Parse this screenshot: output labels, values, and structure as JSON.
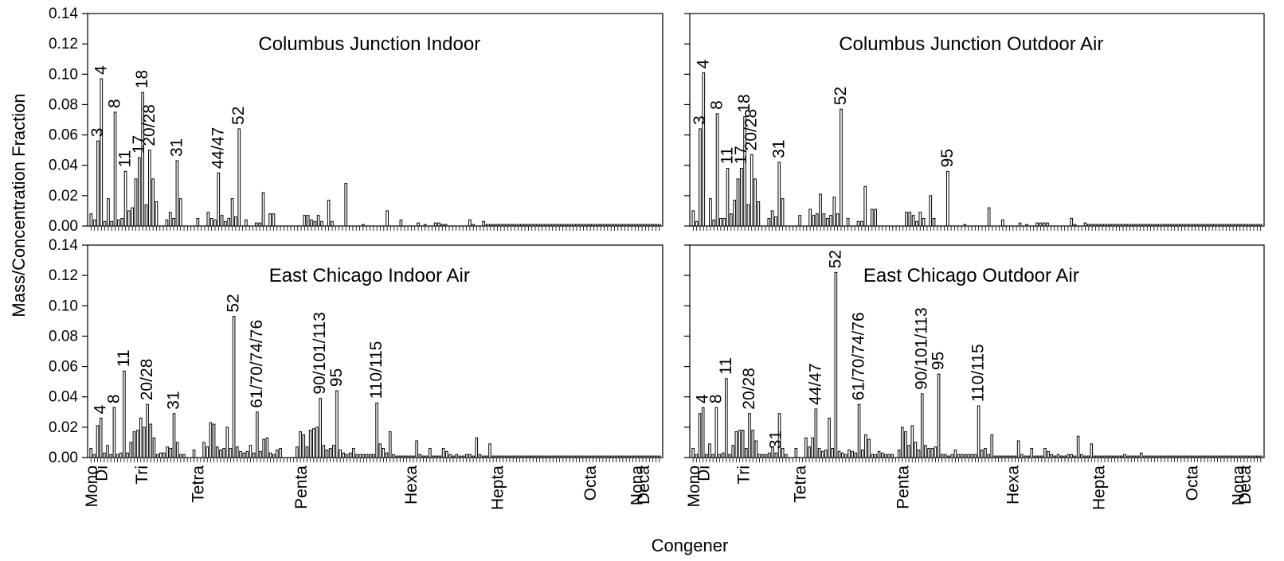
{
  "figure": {
    "ylabel": "Mass/Concentration Fraction",
    "xlabel": "Congener",
    "yticks": [
      "0.00",
      "0.02",
      "0.04",
      "0.06",
      "0.08",
      "0.10",
      "0.12",
      "0.14"
    ],
    "homolog_groups": [
      "Mono",
      "Di",
      "Tri",
      "Tetra",
      "Penta",
      "Hexa",
      "Hepta",
      "Octa",
      "Nona",
      "Deca"
    ]
  },
  "chart_data": [
    {
      "type": "bar",
      "title": "Columbus Junction Indoor",
      "ylim": [
        0,
        0.14
      ],
      "bars": [
        0.008,
        0.004,
        0.056,
        0.097,
        0.003,
        0.018,
        0.003,
        0.075,
        0.004,
        0.005,
        0.036,
        0.01,
        0.012,
        0.031,
        0.045,
        0.088,
        0.014,
        0.05,
        0.031,
        0.016,
        0,
        0,
        0.004,
        0.009,
        0.005,
        0.043,
        0.018,
        0,
        0,
        0,
        0,
        0.005,
        0,
        0,
        0.009,
        0.005,
        0.004,
        0.035,
        0.007,
        0.003,
        0.005,
        0.018,
        0.006,
        0.064,
        0,
        0.004,
        0,
        0,
        0.002,
        0.002,
        0.022,
        0,
        0.008,
        0.008,
        0,
        0,
        0,
        0,
        0,
        0,
        0,
        0,
        0.007,
        0.007,
        0.004,
        0.003,
        0.007,
        0.003,
        0,
        0.017,
        0.003,
        0,
        0,
        0,
        0.028,
        0,
        0,
        0,
        0,
        0.001,
        0,
        0,
        0,
        0,
        0,
        0,
        0.01,
        0,
        0,
        0,
        0.004,
        0,
        0,
        0,
        0,
        0.002,
        0,
        0.001,
        0,
        0,
        0.002,
        0.002,
        0.001,
        0.001,
        0,
        0,
        0,
        0,
        0,
        0,
        0.004,
        0.001,
        0,
        0,
        0.003,
        0.001,
        0.001,
        0.001,
        0.001,
        0.001,
        0.001,
        0.001,
        0.001,
        0.001,
        0.001,
        0.001,
        0.001,
        0.001,
        0.001,
        0.001,
        0.001,
        0.001,
        0.001,
        0.001,
        0.001,
        0.001,
        0.001,
        0.001,
        0.001,
        0.001,
        0.001,
        0.001,
        0.001,
        0.001,
        0.001,
        0.001,
        0.001,
        0.001,
        0.001,
        0.001,
        0.001,
        0.001,
        0.001,
        0.001,
        0.001,
        0.001,
        0.001,
        0.001,
        0.001,
        0.001,
        0.001,
        0.001,
        0.001,
        0.001,
        0.001,
        0.001
      ],
      "labels": [
        {
          "text": "3",
          "bar": 2
        },
        {
          "text": "4",
          "bar": 3
        },
        {
          "text": "8",
          "bar": 7
        },
        {
          "text": "11",
          "bar": 10
        },
        {
          "text": "17",
          "bar": 14
        },
        {
          "text": "18",
          "bar": 15
        },
        {
          "text": "20/28",
          "bar": 17
        },
        {
          "text": "31",
          "bar": 25
        },
        {
          "text": "44/47",
          "bar": 37
        },
        {
          "text": "52",
          "bar": 43
        }
      ],
      "show_x_group_labels": false
    },
    {
      "type": "bar",
      "title": "Columbus Junction Outdoor Air",
      "ylim": [
        0,
        0.14
      ],
      "bars": [
        0.01,
        0.003,
        0.064,
        0.101,
        0,
        0.018,
        0.004,
        0.074,
        0.005,
        0.005,
        0.038,
        0.008,
        0.017,
        0.031,
        0.038,
        0.072,
        0.014,
        0.047,
        0.031,
        0.016,
        0,
        0,
        0.005,
        0.01,
        0.006,
        0.042,
        0.018,
        0,
        0,
        0,
        0,
        0.007,
        0,
        0,
        0.011,
        0.007,
        0.008,
        0.021,
        0.008,
        0.005,
        0.007,
        0.019,
        0.008,
        0.077,
        0,
        0.005,
        0,
        0,
        0.003,
        0.003,
        0.026,
        0,
        0.011,
        0.011,
        0,
        0,
        0,
        0,
        0,
        0,
        0,
        0,
        0.009,
        0.009,
        0.007,
        0.003,
        0.009,
        0.005,
        0,
        0.02,
        0.005,
        0,
        0,
        0,
        0.036,
        0,
        0,
        0,
        0,
        0.001,
        0,
        0,
        0,
        0,
        0,
        0,
        0.012,
        0,
        0,
        0,
        0.004,
        0,
        0,
        0,
        0,
        0.002,
        0,
        0.001,
        0,
        0,
        0.002,
        0.002,
        0.002,
        0.002,
        0,
        0,
        0,
        0,
        0,
        0,
        0.005,
        0.001,
        0,
        0,
        0.002,
        0.001,
        0.001,
        0.001,
        0.001,
        0.001,
        0.001,
        0.001,
        0.001,
        0.001,
        0.001,
        0.001,
        0.001,
        0.001,
        0.001,
        0.001,
        0.001,
        0.001,
        0.001,
        0.001,
        0.001,
        0.001,
        0.001,
        0.001,
        0.001,
        0.001,
        0.001,
        0.001,
        0.001,
        0.001,
        0.001,
        0.001,
        0.001,
        0.001,
        0.001,
        0.001,
        0.001,
        0.001,
        0.001,
        0.001,
        0.001,
        0.001,
        0.001,
        0.001,
        0.001,
        0.001,
        0.001,
        0.001,
        0.001,
        0.001,
        0.001,
        0.001
      ],
      "labels": [
        {
          "text": "3",
          "bar": 2
        },
        {
          "text": "4",
          "bar": 3
        },
        {
          "text": "8",
          "bar": 7
        },
        {
          "text": "11",
          "bar": 10
        },
        {
          "text": "17",
          "bar": 14
        },
        {
          "text": "18",
          "bar": 15
        },
        {
          "text": "20/28",
          "bar": 17
        },
        {
          "text": "31",
          "bar": 25
        },
        {
          "text": "52",
          "bar": 43
        },
        {
          "text": "95",
          "bar": 74
        }
      ],
      "show_x_group_labels": false
    },
    {
      "type": "bar",
      "title": "East Chicago Indoor Air",
      "ylim": [
        0,
        0.14
      ],
      "bars": [
        0.006,
        0.002,
        0.021,
        0.026,
        0.003,
        0.008,
        0.002,
        0.033,
        0.002,
        0.003,
        0.057,
        0.003,
        0.01,
        0.017,
        0.018,
        0.026,
        0.02,
        0.035,
        0.022,
        0.013,
        0.002,
        0.003,
        0.003,
        0.007,
        0.006,
        0.029,
        0.01,
        0.002,
        0.002,
        0,
        0,
        0.005,
        0,
        0,
        0.01,
        0.007,
        0.023,
        0.022,
        0.007,
        0.005,
        0.006,
        0.02,
        0.006,
        0.093,
        0.007,
        0.004,
        0.003,
        0.004,
        0.008,
        0.003,
        0.03,
        0.004,
        0.012,
        0.013,
        0.003,
        0.002,
        0.005,
        0.006,
        0,
        0,
        0,
        0,
        0.007,
        0.017,
        0.015,
        0.007,
        0.018,
        0.019,
        0.02,
        0.039,
        0.008,
        0.005,
        0.006,
        0.008,
        0.044,
        0.005,
        0.003,
        0.002,
        0.003,
        0.006,
        0.002,
        0.002,
        0.002,
        0.002,
        0.002,
        0.002,
        0.036,
        0.009,
        0.006,
        0.003,
        0.017,
        0.002,
        0.001,
        0.001,
        0.001,
        0.001,
        0.001,
        0.001,
        0.011,
        0.002,
        0.001,
        0.001,
        0.006,
        0.001,
        0.001,
        0.001,
        0.006,
        0.004,
        0.002,
        0.001,
        0.002,
        0.001,
        0.001,
        0.002,
        0.002,
        0.001,
        0.013,
        0.002,
        0.001,
        0.001,
        0.009,
        0.001,
        0.001,
        0.001,
        0.001,
        0.001,
        0.001,
        0.001,
        0.001,
        0.001,
        0.001,
        0.001,
        0.001,
        0.001,
        0.001,
        0.001,
        0.001,
        0.001,
        0.001,
        0.001,
        0.001,
        0.001,
        0.001,
        0.001,
        0.001,
        0.001,
        0.001,
        0.001,
        0.001,
        0.001,
        0.001,
        0.001,
        0.001,
        0.001,
        0.001,
        0.001,
        0.001,
        0.001,
        0.001,
        0.001,
        0.001,
        0.001,
        0.001,
        0.001,
        0.001,
        0.001,
        0.001,
        0.001,
        0.001,
        0.001,
        0.001,
        0.001
      ],
      "labels": [
        {
          "text": "4",
          "bar": 3
        },
        {
          "text": "8",
          "bar": 7
        },
        {
          "text": "11",
          "bar": 10
        },
        {
          "text": "20/28",
          "bar": 17
        },
        {
          "text": "31",
          "bar": 25
        },
        {
          "text": "52",
          "bar": 43
        },
        {
          "text": "61/70/74/76",
          "bar": 50
        },
        {
          "text": "90/101/113",
          "bar": 69
        },
        {
          "text": "95",
          "bar": 74
        },
        {
          "text": "110/115",
          "bar": 86
        }
      ],
      "show_x_group_labels": true
    },
    {
      "type": "bar",
      "title": "East Chicago Outdoor Air",
      "ylim": [
        0,
        0.14
      ],
      "bars": [
        0.006,
        0.002,
        0.029,
        0.033,
        0.002,
        0.009,
        0.002,
        0.033,
        0.002,
        0.003,
        0.052,
        0.002,
        0.008,
        0.017,
        0.018,
        0.018,
        0.006,
        0.029,
        0.018,
        0.011,
        0.002,
        0.002,
        0.002,
        0.003,
        0.007,
        0.003,
        0.029,
        0.006,
        0.002,
        0,
        0,
        0.006,
        0,
        0,
        0.013,
        0.007,
        0.013,
        0.032,
        0.006,
        0.004,
        0.005,
        0.026,
        0.006,
        0.122,
        0.004,
        0.003,
        0.002,
        0.005,
        0.004,
        0.003,
        0.035,
        0.005,
        0.015,
        0.012,
        0.002,
        0.002,
        0.004,
        0.003,
        0.002,
        0.002,
        0.002,
        0,
        0.005,
        0.02,
        0.017,
        0.008,
        0.021,
        0.01,
        0.005,
        0.042,
        0.008,
        0.006,
        0.006,
        0.007,
        0.055,
        0.002,
        0.002,
        0.001,
        0.002,
        0.005,
        0.002,
        0.002,
        0.002,
        0.002,
        0.002,
        0.002,
        0.034,
        0.005,
        0.006,
        0.002,
        0.015,
        0.001,
        0.001,
        0.001,
        0.001,
        0.001,
        0.001,
        0.001,
        0.011,
        0.002,
        0.001,
        0.001,
        0.006,
        0.001,
        0.001,
        0.001,
        0.006,
        0.004,
        0.002,
        0.001,
        0.002,
        0.001,
        0.001,
        0.002,
        0.002,
        0.001,
        0.014,
        0.002,
        0.001,
        0.001,
        0.009,
        0.001,
        0.001,
        0.001,
        0.001,
        0.001,
        0.001,
        0.001,
        0.001,
        0.001,
        0.002,
        0.001,
        0.001,
        0.001,
        0.001,
        0.003,
        0.001,
        0.001,
        0.001,
        0.001,
        0.001,
        0.001,
        0.001,
        0.001,
        0.001,
        0.001,
        0.001,
        0.001,
        0.001,
        0.001,
        0.001,
        0.001,
        0.001,
        0.001,
        0.001,
        0.001,
        0.001,
        0.001,
        0.001,
        0.001,
        0.001,
        0.001,
        0.001,
        0.001,
        0.001,
        0.001,
        0.001,
        0.001,
        0.001,
        0.001,
        0.001,
        0.001
      ],
      "labels": [
        {
          "text": "4",
          "bar": 3
        },
        {
          "text": "8",
          "bar": 7
        },
        {
          "text": "11",
          "bar": 10
        },
        {
          "text": "20/28",
          "bar": 17
        },
        {
          "text": "31",
          "bar": 25
        },
        {
          "text": "44/47",
          "bar": 37
        },
        {
          "text": "52",
          "bar": 43
        },
        {
          "text": "61/70/74/76",
          "bar": 50
        },
        {
          "text": "90/101/113",
          "bar": 69
        },
        {
          "text": "95",
          "bar": 74
        },
        {
          "text": "110/115",
          "bar": 86
        }
      ],
      "show_x_group_labels": true
    }
  ]
}
